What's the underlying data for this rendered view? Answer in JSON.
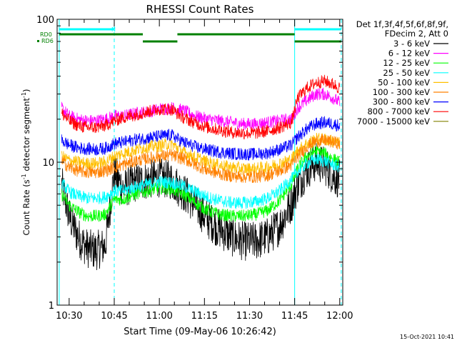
{
  "chart_data": {
    "type": "line",
    "title": "RHESSI Count Rates",
    "xlabel": "Start Time (09-May-06 10:26:42)",
    "ylabel_main": "Count Rate (s",
    "ylabel_sup1": "-1",
    "ylabel_mid": " detector segment",
    "ylabel_sup2": "-1",
    "ylabel_end": ")",
    "y_scale": "log",
    "ylim": [
      1,
      100
    ],
    "y_ticks": [
      {
        "value": 1,
        "label": "1"
      },
      {
        "value": 10,
        "label": "10"
      },
      {
        "value": 100,
        "label": "100"
      }
    ],
    "x_range_minutes": [
      -4,
      91
    ],
    "x_ticks": [
      {
        "minute": 0,
        "label": "10:30"
      },
      {
        "minute": 15,
        "label": "10:45"
      },
      {
        "minute": 30,
        "label": "11:00"
      },
      {
        "minute": 45,
        "label": "11:15"
      },
      {
        "minute": 60,
        "label": "11:30"
      },
      {
        "minute": 75,
        "label": "11:45"
      },
      {
        "minute": 90,
        "label": "12:00"
      }
    ],
    "legend_header": [
      "Det 1f,3f,4f,5f,6f,8f,9f,",
      "FDecim 2, Att 0"
    ],
    "legend_position": "right",
    "series": [
      {
        "name": "3 - 6 keV",
        "color": "#000000",
        "minute": [
          -2.5,
          0,
          3,
          6,
          9,
          12,
          15,
          18,
          22,
          26,
          30,
          34,
          38,
          42,
          46,
          50,
          54,
          58,
          62,
          66,
          70,
          74,
          76,
          79,
          82,
          85,
          88,
          90
        ],
        "values": [
          7.0,
          4.2,
          3.0,
          2.5,
          2.4,
          2.6,
          8.5,
          6.5,
          7.2,
          7.5,
          7.8,
          7.5,
          6.2,
          5.0,
          4.0,
          3.4,
          3.0,
          2.8,
          2.8,
          3.0,
          3.6,
          5.2,
          7.0,
          8.8,
          10.0,
          9.5,
          8.0,
          7.6
        ]
      },
      {
        "name": "6 - 12 keV",
        "color": "#ff00ff",
        "minute": [
          -2.5,
          0,
          3,
          6,
          9,
          12,
          15,
          18,
          22,
          26,
          30,
          34,
          38,
          42,
          46,
          50,
          54,
          58,
          62,
          66,
          70,
          74,
          76,
          79,
          82,
          85,
          88,
          90
        ],
        "values": [
          24,
          21,
          20,
          19.5,
          19.5,
          20,
          21,
          21,
          22,
          22.5,
          23.5,
          24,
          23,
          21,
          20,
          19.5,
          19,
          18.5,
          18.5,
          19,
          19.5,
          20,
          24,
          27,
          30,
          30,
          28,
          26
        ]
      },
      {
        "name": "12 - 25 keV",
        "color": "#00ff00",
        "minute": [
          -2.5,
          0,
          3,
          6,
          9,
          12,
          15,
          18,
          22,
          26,
          30,
          34,
          38,
          42,
          46,
          50,
          54,
          58,
          62,
          66,
          70,
          74,
          76,
          79,
          82,
          85,
          88,
          90
        ],
        "values": [
          6.0,
          5.0,
          4.5,
          4.2,
          4.2,
          4.3,
          5.5,
          5.5,
          6.0,
          6.3,
          6.6,
          6.5,
          6.0,
          5.2,
          4.6,
          4.3,
          4.2,
          4.2,
          4.3,
          4.6,
          5.4,
          7.0,
          9.0,
          11.0,
          12.0,
          11.5,
          10.5,
          10.0
        ]
      },
      {
        "name": "25 - 50 keV",
        "color": "#00ffff",
        "minute": [
          -2.5,
          0,
          3,
          6,
          9,
          12,
          15,
          18,
          22,
          26,
          30,
          34,
          38,
          42,
          46,
          50,
          54,
          58,
          62,
          66,
          70,
          74,
          76,
          79,
          82,
          85,
          88,
          90
        ],
        "values": [
          7.2,
          6.2,
          5.8,
          5.6,
          5.6,
          5.7,
          6.3,
          6.3,
          6.7,
          7.0,
          7.3,
          7.2,
          6.8,
          6.2,
          5.7,
          5.4,
          5.2,
          5.2,
          5.3,
          5.6,
          6.3,
          7.6,
          8.6,
          9.8,
          10.5,
          10.2,
          9.6,
          9.2
        ]
      },
      {
        "name": "50 - 100 keV",
        "color": "#ffbf00",
        "minute": [
          -2.5,
          0,
          3,
          6,
          9,
          12,
          15,
          18,
          22,
          26,
          30,
          34,
          38,
          42,
          46,
          50,
          54,
          58,
          62,
          66,
          70,
          74,
          76,
          79,
          82,
          85,
          88,
          90
        ],
        "values": [
          11.0,
          10.3,
          10.0,
          9.8,
          9.8,
          10.0,
          11.0,
          11.5,
          12.2,
          12.8,
          13.0,
          13.5,
          11.8,
          10.8,
          10.0,
          9.5,
          9.2,
          9.0,
          9.0,
          9.2,
          9.8,
          10.5,
          12.0,
          13.5,
          14.5,
          14.5,
          14.0,
          13.5
        ]
      },
      {
        "name": "100 - 300 keV",
        "color": "#ff8000",
        "minute": [
          -2.5,
          0,
          3,
          6,
          9,
          12,
          15,
          18,
          22,
          26,
          30,
          34,
          38,
          42,
          46,
          50,
          54,
          58,
          62,
          66,
          70,
          74,
          76,
          79,
          82,
          85,
          88,
          90
        ],
        "values": [
          10.2,
          9.2,
          8.7,
          8.5,
          8.5,
          8.7,
          9.2,
          9.6,
          10.2,
          10.6,
          11.0,
          11.2,
          10.6,
          9.6,
          8.8,
          8.3,
          8.0,
          7.9,
          7.9,
          8.1,
          8.7,
          9.6,
          11.0,
          12.8,
          14.0,
          14.2,
          13.8,
          13.5
        ]
      },
      {
        "name": "300 - 800 keV",
        "color": "#0000ff",
        "minute": [
          -2.5,
          0,
          3,
          6,
          9,
          12,
          15,
          18,
          22,
          26,
          30,
          34,
          38,
          42,
          46,
          50,
          54,
          58,
          62,
          66,
          70,
          74,
          76,
          79,
          82,
          85,
          88,
          90
        ],
        "values": [
          14.2,
          13.2,
          12.6,
          12.4,
          12.3,
          12.5,
          13.5,
          13.8,
          14.4,
          14.8,
          15.2,
          15.5,
          13.8,
          12.8,
          12.2,
          11.8,
          11.5,
          11.4,
          11.4,
          11.6,
          12.3,
          13.2,
          15.0,
          17.0,
          18.5,
          19.0,
          18.5,
          18.0
        ]
      },
      {
        "name": "800 - 7000 keV",
        "color": "#ff0000",
        "minute": [
          -2.5,
          0,
          3,
          6,
          9,
          12,
          15,
          18,
          22,
          26,
          30,
          34,
          38,
          42,
          46,
          50,
          54,
          58,
          62,
          66,
          70,
          74,
          76,
          79,
          82,
          85,
          88,
          90
        ],
        "values": [
          22,
          19.5,
          18,
          17.5,
          17.5,
          18,
          19.5,
          20.5,
          21.5,
          22.5,
          23.5,
          23.5,
          20.5,
          18.8,
          17.5,
          16.8,
          16.2,
          16,
          16,
          16.5,
          17.5,
          19,
          28,
          33,
          36,
          37,
          35,
          33
        ]
      },
      {
        "name": "7000 - 15000 keV",
        "color": "#808000",
        "minute": [],
        "values": []
      }
    ],
    "spacecraft_lines": {
      "color": "#00ffff",
      "solid_minutes": [
        -3.3,
        75
      ],
      "dashed_minutes": [
        15,
        90.5
      ]
    },
    "attenuator_labels": [
      "RD0",
      "RD6"
    ],
    "attenuator_color": "#008000",
    "attenuator_markers": {
      "N": "N"
    },
    "date_stamp": "15-Oct-2021 10:41"
  }
}
